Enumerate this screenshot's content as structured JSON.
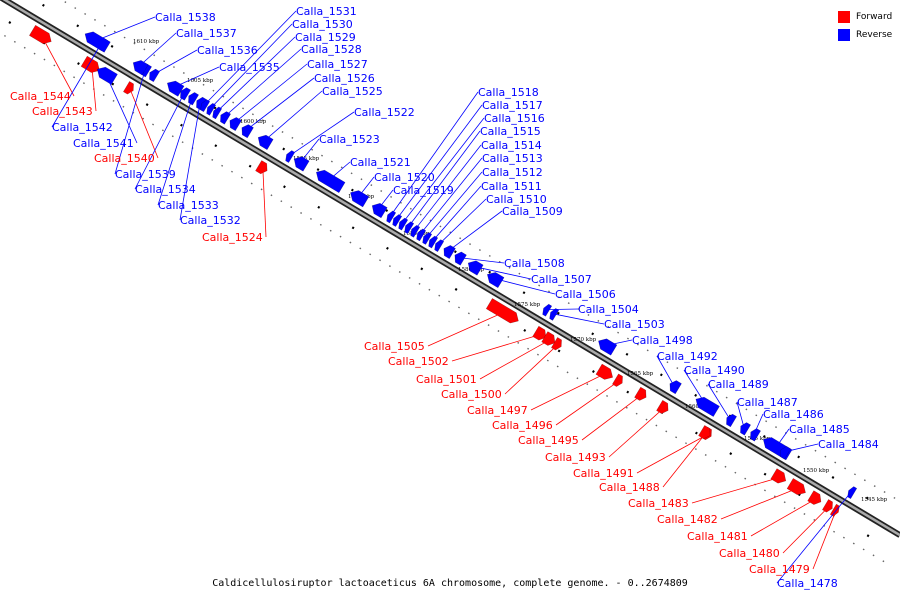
{
  "caption": "Caldicellulosiruptor lactoaceticus 6A chromosome, complete genome. - 0..2674809",
  "legend": [
    {
      "label": "Forward",
      "color": "#ff0000"
    },
    {
      "label": "Reverse",
      "color": "#0000ff"
    }
  ],
  "colors": {
    "forward": "#ff0000",
    "reverse": "#0000ff"
  },
  "ticks": [
    "1610 kbp",
    "1605 kbp",
    "1600 kbp",
    "1595 kbp",
    "1590 kbp",
    "1585 kbp",
    "1580 kbp",
    "1575 kbp",
    "1570 kbp",
    "1565 kbp",
    "1560 kbp",
    "1555 kbp",
    "1550 kbp",
    "1545 kbp"
  ],
  "genes": [
    {
      "id": "Calla_1544",
      "strand": "forward"
    },
    {
      "id": "Calla_1543",
      "strand": "forward"
    },
    {
      "id": "Calla_1542",
      "strand": "reverse"
    },
    {
      "id": "Calla_1541",
      "strand": "reverse"
    },
    {
      "id": "Calla_1540",
      "strand": "forward"
    },
    {
      "id": "Calla_1539",
      "strand": "reverse"
    },
    {
      "id": "Calla_1538",
      "strand": "reverse"
    },
    {
      "id": "Calla_1537",
      "strand": "reverse"
    },
    {
      "id": "Calla_1536",
      "strand": "reverse"
    },
    {
      "id": "Calla_1535",
      "strand": "reverse"
    },
    {
      "id": "Calla_1534",
      "strand": "reverse"
    },
    {
      "id": "Calla_1533",
      "strand": "reverse"
    },
    {
      "id": "Calla_1532",
      "strand": "reverse"
    },
    {
      "id": "Calla_1531",
      "strand": "reverse"
    },
    {
      "id": "Calla_1530",
      "strand": "reverse"
    },
    {
      "id": "Calla_1529",
      "strand": "reverse"
    },
    {
      "id": "Calla_1528",
      "strand": "reverse"
    },
    {
      "id": "Calla_1527",
      "strand": "reverse"
    },
    {
      "id": "Calla_1526",
      "strand": "reverse"
    },
    {
      "id": "Calla_1525",
      "strand": "reverse"
    },
    {
      "id": "Calla_1524",
      "strand": "forward"
    },
    {
      "id": "Calla_1523",
      "strand": "reverse"
    },
    {
      "id": "Calla_1522",
      "strand": "reverse"
    },
    {
      "id": "Calla_1521",
      "strand": "reverse"
    },
    {
      "id": "Calla_1520",
      "strand": "reverse"
    },
    {
      "id": "Calla_1519",
      "strand": "reverse"
    },
    {
      "id": "Calla_1518",
      "strand": "reverse"
    },
    {
      "id": "Calla_1517",
      "strand": "reverse"
    },
    {
      "id": "Calla_1516",
      "strand": "reverse"
    },
    {
      "id": "Calla_1515",
      "strand": "reverse"
    },
    {
      "id": "Calla_1514",
      "strand": "reverse"
    },
    {
      "id": "Calla_1513",
      "strand": "reverse"
    },
    {
      "id": "Calla_1512",
      "strand": "reverse"
    },
    {
      "id": "Calla_1511",
      "strand": "reverse"
    },
    {
      "id": "Calla_1510",
      "strand": "reverse"
    },
    {
      "id": "Calla_1509",
      "strand": "reverse"
    },
    {
      "id": "Calla_1508",
      "strand": "reverse"
    },
    {
      "id": "Calla_1507",
      "strand": "reverse"
    },
    {
      "id": "Calla_1506",
      "strand": "reverse"
    },
    {
      "id": "Calla_1505",
      "strand": "forward"
    },
    {
      "id": "Calla_1504",
      "strand": "reverse"
    },
    {
      "id": "Calla_1503",
      "strand": "reverse"
    },
    {
      "id": "Calla_1502",
      "strand": "forward"
    },
    {
      "id": "Calla_1501",
      "strand": "forward"
    },
    {
      "id": "Calla_1500",
      "strand": "forward"
    },
    {
      "id": "Calla_1498",
      "strand": "reverse"
    },
    {
      "id": "Calla_1497",
      "strand": "forward"
    },
    {
      "id": "Calla_1496",
      "strand": "forward"
    },
    {
      "id": "Calla_1495",
      "strand": "forward"
    },
    {
      "id": "Calla_1493",
      "strand": "forward"
    },
    {
      "id": "Calla_1492",
      "strand": "reverse"
    },
    {
      "id": "Calla_1491",
      "strand": "forward"
    },
    {
      "id": "Calla_1490",
      "strand": "reverse"
    },
    {
      "id": "Calla_1489",
      "strand": "reverse"
    },
    {
      "id": "Calla_1488",
      "strand": "forward"
    },
    {
      "id": "Calla_1487",
      "strand": "reverse"
    },
    {
      "id": "Calla_1486",
      "strand": "reverse"
    },
    {
      "id": "Calla_1485",
      "strand": "reverse"
    },
    {
      "id": "Calla_1484",
      "strand": "reverse"
    },
    {
      "id": "Calla_1483",
      "strand": "forward"
    },
    {
      "id": "Calla_1482",
      "strand": "forward"
    },
    {
      "id": "Calla_1481",
      "strand": "forward"
    },
    {
      "id": "Calla_1480",
      "strand": "forward"
    },
    {
      "id": "Calla_1479",
      "strand": "forward"
    },
    {
      "id": "Calla_1478",
      "strand": "reverse"
    }
  ]
}
